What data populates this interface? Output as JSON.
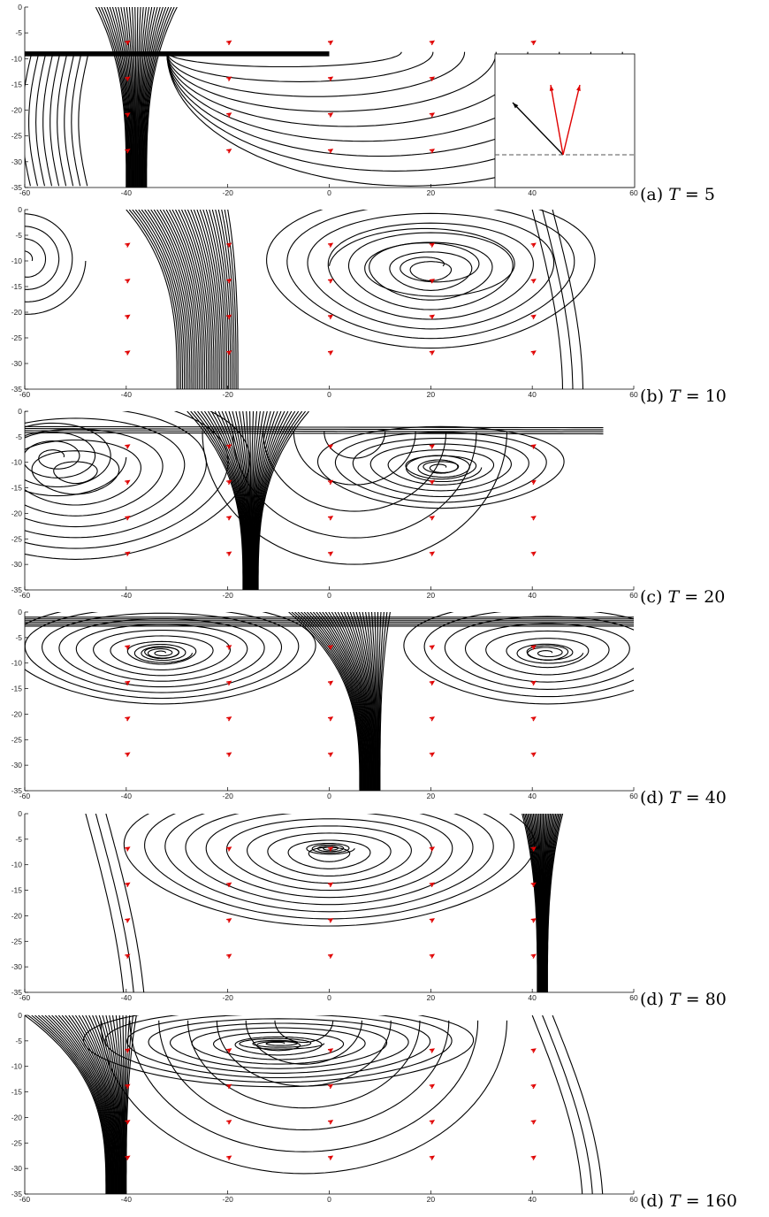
{
  "figure": {
    "panels": [
      {
        "id": "a",
        "caption_prefix": "(a)",
        "caption_var": "T",
        "caption_eq": "= 5"
      },
      {
        "id": "b",
        "caption_prefix": "(b)",
        "caption_var": "T",
        "caption_eq": "= 10"
      },
      {
        "id": "c",
        "caption_prefix": "(c)",
        "caption_var": "T",
        "caption_eq": "= 20"
      },
      {
        "id": "d1",
        "caption_prefix": "(d)",
        "caption_var": "T",
        "caption_eq": "= 40"
      },
      {
        "id": "d2",
        "caption_prefix": "(d)",
        "caption_var": "T",
        "caption_eq": "= 80"
      },
      {
        "id": "d3",
        "caption_prefix": "(d)",
        "caption_var": "T",
        "caption_eq": "= 160"
      }
    ]
  },
  "chart_data": [
    {
      "type": "scatter",
      "plot": "streamlines",
      "T": 5,
      "xlim": [
        -60,
        60
      ],
      "ylim": [
        -35,
        0
      ],
      "xticks": [
        "-60",
        "-40",
        "-20",
        "0",
        "20",
        "40",
        "60"
      ],
      "yticks": [
        "0",
        "-5",
        "-10",
        "-15",
        "-20",
        "-25",
        "-30",
        "-35"
      ],
      "vortices": [],
      "boundary_layer_y": -8.7,
      "downflow_x": -38,
      "inset": {
        "present": true,
        "arrows": [
          "black",
          "red",
          "red"
        ],
        "baseline": "dashed"
      }
    },
    {
      "type": "scatter",
      "plot": "streamlines",
      "T": 10,
      "xlim": [
        -60,
        60
      ],
      "ylim": [
        -35,
        0
      ],
      "xticks": [
        "-60",
        "-40",
        "-20",
        "0",
        "20",
        "40",
        "60"
      ],
      "yticks": [
        "0",
        "-5",
        "-10",
        "-15",
        "-20",
        "-25",
        "-30",
        "-35"
      ],
      "vortices": [
        {
          "x": -60,
          "y": -10
        },
        {
          "x": 20,
          "y": -12
        }
      ],
      "downflow_x": -27
    },
    {
      "type": "scatter",
      "plot": "streamlines",
      "T": 20,
      "xlim": [
        -60,
        60
      ],
      "ylim": [
        -35,
        0
      ],
      "xticks": [
        "-60",
        "-40",
        "-20",
        "0",
        "20",
        "40",
        "60"
      ],
      "yticks": [
        "0",
        "-5",
        "-10",
        "-15",
        "-20",
        "-25",
        "-30",
        "-35"
      ],
      "vortices": [
        {
          "x": -54,
          "y": -9
        },
        {
          "x": 22,
          "y": -11
        }
      ],
      "downflow_x": -15
    },
    {
      "type": "scatter",
      "plot": "streamlines",
      "T": 40,
      "xlim": [
        -60,
        60
      ],
      "ylim": [
        -35,
        0
      ],
      "xticks": [
        "-60",
        "-40",
        "-20",
        "0",
        "20",
        "40",
        "60"
      ],
      "yticks": [
        "0",
        "-5",
        "-10",
        "-15",
        "-20",
        "-25",
        "-30",
        "-35"
      ],
      "vortices": [
        {
          "x": -33,
          "y": -8
        },
        {
          "x": 43,
          "y": -8
        }
      ],
      "downflow_x": 8
    },
    {
      "type": "scatter",
      "plot": "streamlines",
      "T": 80,
      "xlim": [
        -60,
        60
      ],
      "ylim": [
        -35,
        0
      ],
      "xticks": [
        "-60",
        "-40",
        "-20",
        "0",
        "20",
        "40",
        "60"
      ],
      "yticks": [
        "0",
        "-5",
        "-10",
        "-15",
        "-20",
        "-25",
        "-30",
        "-35"
      ],
      "vortices": [
        {
          "x": 0,
          "y": -7
        }
      ],
      "downflow_x": 43
    },
    {
      "type": "scatter",
      "plot": "streamlines",
      "T": 160,
      "xlim": [
        -60,
        60
      ],
      "ylim": [
        -35,
        0
      ],
      "xticks": [
        "-60",
        "-40",
        "-20",
        "0",
        "20",
        "40",
        "60"
      ],
      "yticks": [
        "0",
        "-5",
        "-10",
        "-15",
        "-20",
        "-25",
        "-30",
        "-35"
      ],
      "vortices": [
        {
          "x": -10,
          "y": -6
        }
      ],
      "downflow_x": -40
    }
  ],
  "colors": {
    "streamline": "#000000",
    "arrow": "#e00000",
    "axis": "#000000",
    "inset_dash": "#555555"
  }
}
